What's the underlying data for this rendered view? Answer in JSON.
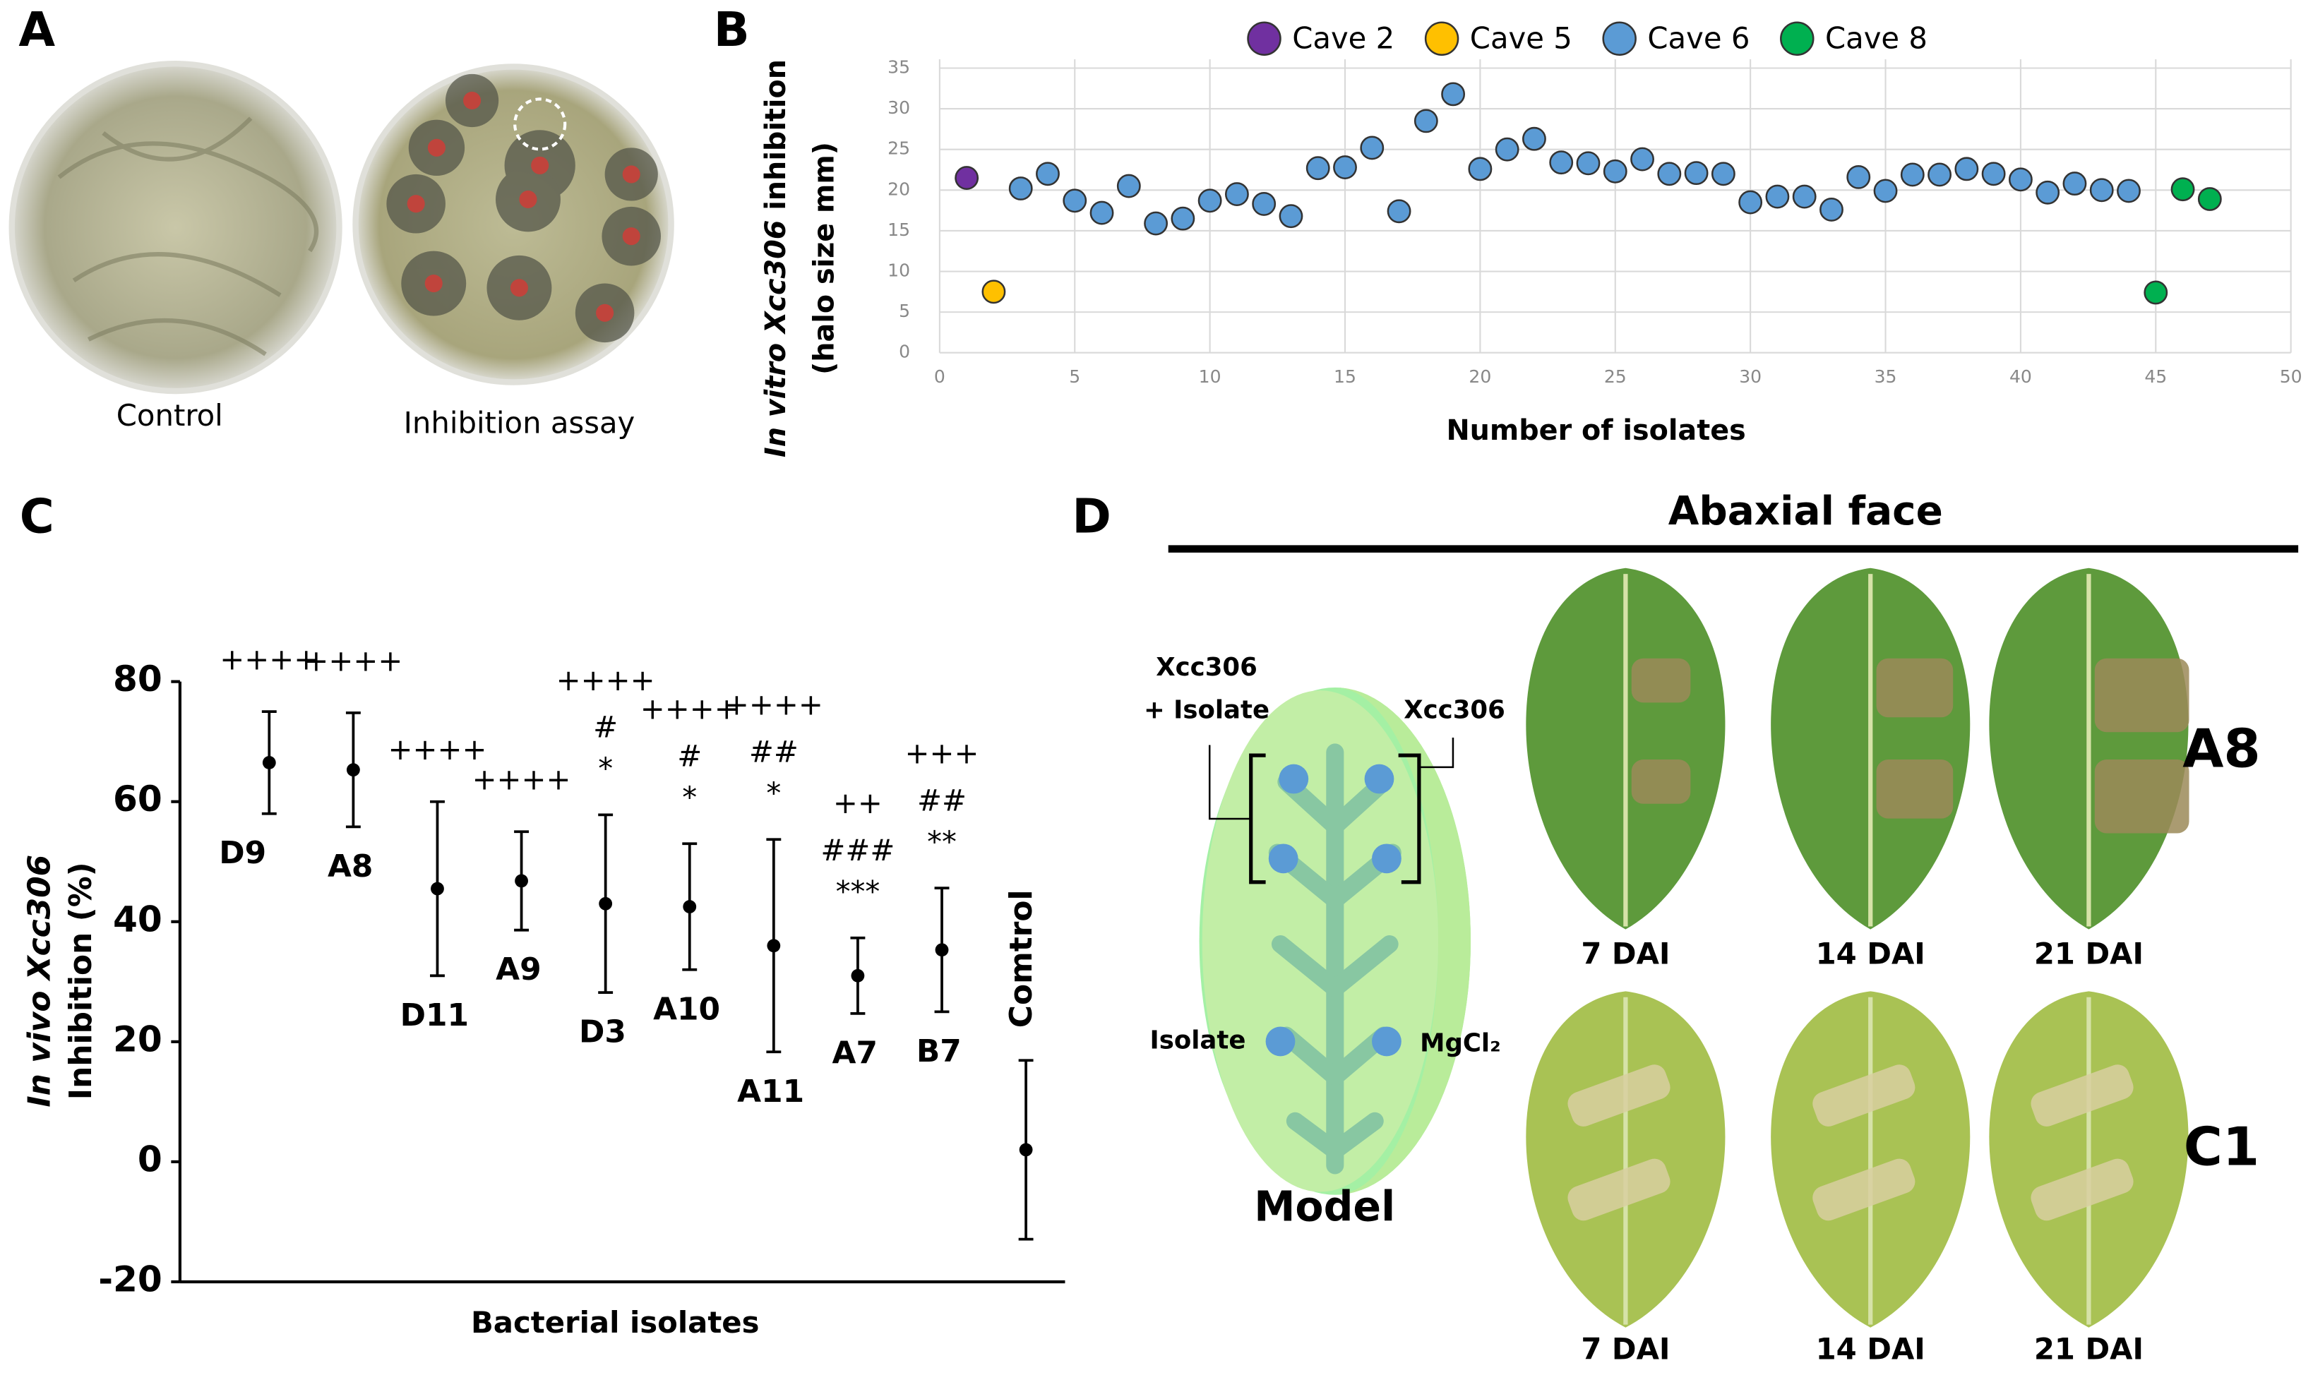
{
  "panel_labels": [
    "A",
    "B",
    "C",
    "D"
  ],
  "panel_a": {
    "captions": [
      "Control",
      "Inhibition assay"
    ]
  },
  "chart_data": [
    {
      "type": "scatter",
      "y_label": {
        "italic": "In vitro Xcc306",
        "plain": "inhibition",
        "line2": "(halo size mm)"
      },
      "x_label": "Number of isolates",
      "xlim": [
        0,
        50
      ],
      "xticks": [
        0,
        5,
        10,
        15,
        20,
        25,
        30,
        35,
        40,
        45,
        50
      ],
      "ylim": [
        0,
        35
      ],
      "yticks": [
        0,
        5,
        10,
        15,
        20,
        25,
        30,
        35
      ],
      "grid": true,
      "legend": "top",
      "series": [
        {
          "name": "Cave 2",
          "color": "#7030a0",
          "x": [
            1
          ],
          "values": [
            21.5
          ]
        },
        {
          "name": "Cave 5",
          "color": "#ffc000",
          "x": [
            2
          ],
          "values": [
            7.5
          ]
        },
        {
          "name": "Cave 6",
          "color": "#5b9bd5",
          "x": [
            3,
            4,
            5,
            6,
            7,
            8,
            9,
            10,
            11,
            12,
            13,
            14,
            15,
            16,
            17,
            18,
            19,
            20,
            21,
            22,
            23,
            24,
            25,
            26,
            27,
            28,
            29,
            30,
            31,
            32,
            33,
            34,
            35,
            36,
            37,
            38,
            39,
            40,
            41,
            42,
            43,
            44
          ],
          "values": [
            20.2,
            22,
            18.7,
            17.2,
            20.5,
            15.9,
            16.5,
            18.7,
            19.5,
            18.3,
            16.8,
            22.7,
            22.8,
            25.2,
            17.4,
            28.5,
            31.8,
            22.6,
            25,
            26.3,
            23.4,
            23.3,
            22.3,
            23.8,
            22,
            22.1,
            22,
            18.5,
            19.2,
            19.2,
            17.6,
            21.6,
            19.9,
            21.9,
            21.9,
            22.6,
            22,
            21.3,
            19.7,
            20.8,
            20,
            19.9
          ]
        },
        {
          "name": "Cave 8",
          "color": "#00b050",
          "x": [
            45,
            46,
            47
          ],
          "values": [
            7.4,
            20.1,
            18.9
          ]
        }
      ]
    },
    {
      "type": "errorbar",
      "y_label": {
        "italic": "In vivo Xcc306",
        "line2": "Inhibition (%)"
      },
      "x_label": "Bacterial isolates",
      "categories": [
        "D9",
        "A8",
        "D11",
        "A9",
        "D3",
        "A10",
        "A11",
        "A7",
        "B7",
        "Comtrol"
      ],
      "category_colors": [
        "#000000",
        "#ff0000",
        "#000000",
        "#000000",
        "#000000",
        "#000000",
        "#000000",
        "#000000",
        "#000000",
        "#000000"
      ],
      "category_label_rotation": [
        0,
        0,
        0,
        0,
        0,
        0,
        0,
        0,
        0,
        90
      ],
      "values": [
        66.5,
        65.3,
        45.5,
        46.8,
        43,
        42.5,
        36,
        31,
        35.3,
        2
      ],
      "errors": [
        8.5,
        9.5,
        14.5,
        8.2,
        14.8,
        10.5,
        17.7,
        6.3,
        10.3,
        14.9
      ],
      "annotations": [
        [
          "++++"
        ],
        [
          "++++"
        ],
        [
          "++++"
        ],
        [
          "++++"
        ],
        [
          "++++",
          "#",
          "*"
        ],
        [
          "++++",
          "#",
          "*"
        ],
        [
          "++++",
          "##",
          "*"
        ],
        [
          "++",
          "###",
          "***"
        ],
        [
          "+++",
          "##",
          "**"
        ],
        []
      ],
      "color": "#000000",
      "ylim": [
        -20,
        80
      ],
      "yticks": [
        -20,
        0,
        20,
        40,
        60,
        80
      ],
      "grid": false
    }
  ],
  "panel_d": {
    "title": "Abaxial face",
    "model": {
      "name": "Model",
      "labels": [
        "Xcc306",
        "+ Isolate",
        "Xcc306",
        "Isolate",
        "MgCl₂"
      ]
    },
    "rows": [
      {
        "label": "A8",
        "color": "#ff0000",
        "days": [
          "7 DAI",
          "14 DAI",
          "21 DAI"
        ]
      },
      {
        "label": "C1",
        "color": "#000000",
        "days": [
          "7 DAI",
          "14 DAI",
          "21 DAI"
        ]
      }
    ]
  }
}
